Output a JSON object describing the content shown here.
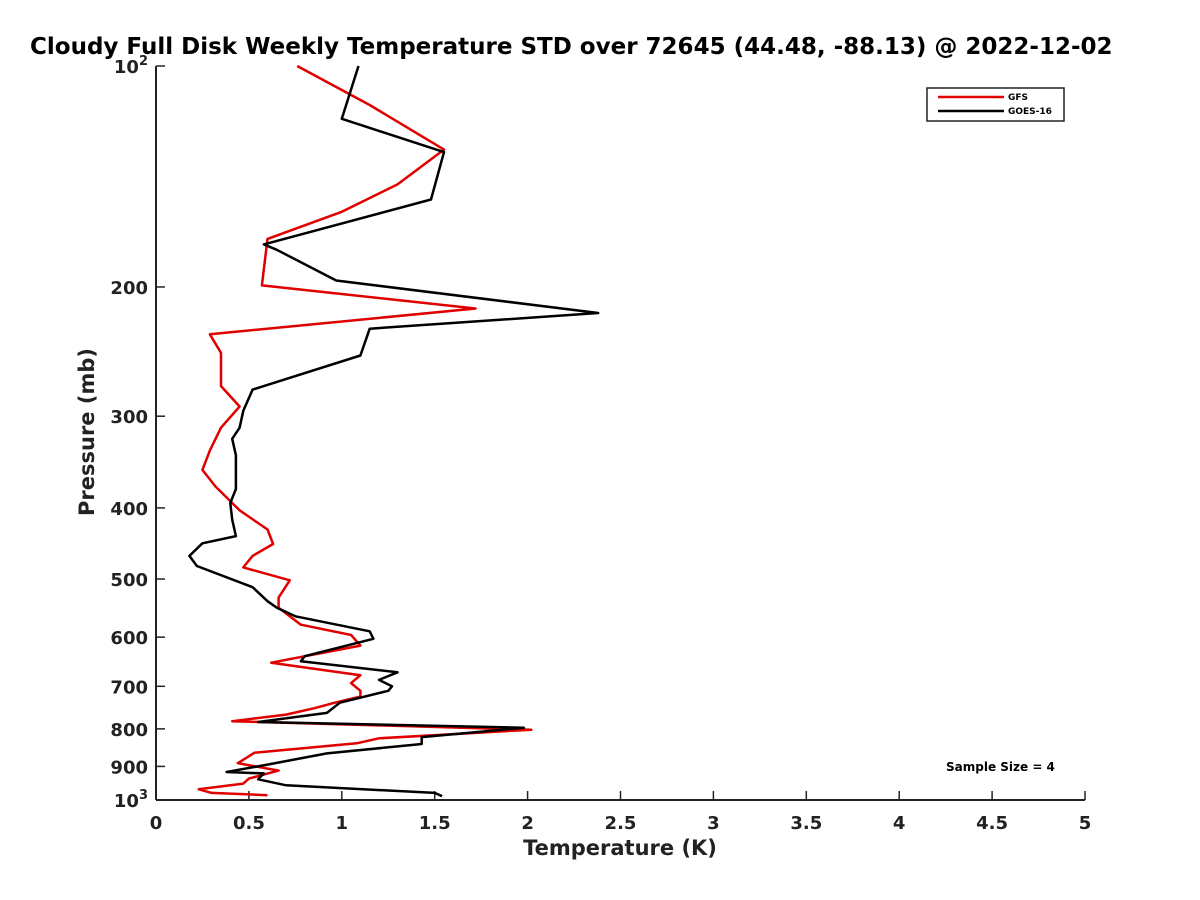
{
  "chart_data": {
    "type": "line",
    "title": "Cloudy Full Disk Weekly Temperature STD over 72645 (44.48, -88.13) @ 2022-12-02",
    "xlabel": "Temperature (K)",
    "ylabel": "Pressure (mb)",
    "xlim": [
      0,
      5
    ],
    "ylim": [
      1000,
      100
    ],
    "yscale": "log",
    "y_reversed": true,
    "grid": false,
    "legend_position": "top-right",
    "x_ticks": [
      0,
      0.5,
      1,
      1.5,
      2,
      2.5,
      3,
      3.5,
      4,
      4.5,
      5
    ],
    "x_tick_labels": [
      "0",
      "0.5",
      "1",
      "1.5",
      "2",
      "2.5",
      "3",
      "3.5",
      "4",
      "4.5",
      "5"
    ],
    "y_ticks": [
      100,
      200,
      300,
      400,
      500,
      600,
      700,
      800,
      900,
      1000
    ],
    "y_tick_labels": [
      {
        "base": "10",
        "exp": "2"
      },
      {
        "base": "200",
        "exp": ""
      },
      {
        "base": "300",
        "exp": ""
      },
      {
        "base": "400",
        "exp": ""
      },
      {
        "base": "500",
        "exp": ""
      },
      {
        "base": "600",
        "exp": ""
      },
      {
        "base": "700",
        "exp": ""
      },
      {
        "base": "800",
        "exp": ""
      },
      {
        "base": "900",
        "exp": ""
      },
      {
        "base": "10",
        "exp": "3"
      }
    ],
    "series": [
      {
        "name": "GFS",
        "color": "#e00000",
        "points": [
          [
            0.76,
            100
          ],
          [
            1.15,
            113
          ],
          [
            1.55,
            130
          ],
          [
            1.3,
            145
          ],
          [
            1.0,
            158
          ],
          [
            0.6,
            172
          ],
          [
            0.57,
            199
          ],
          [
            1.72,
            214
          ],
          [
            0.29,
            232
          ],
          [
            0.35,
            246
          ],
          [
            0.35,
            263
          ],
          [
            0.35,
            273
          ],
          [
            0.45,
            291
          ],
          [
            0.35,
            311
          ],
          [
            0.29,
            334
          ],
          [
            0.25,
            355
          ],
          [
            0.32,
            374
          ],
          [
            0.45,
            403
          ],
          [
            0.6,
            428
          ],
          [
            0.63,
            448
          ],
          [
            0.52,
            465
          ],
          [
            0.47,
            482
          ],
          [
            0.72,
            502
          ],
          [
            0.66,
            530
          ],
          [
            0.66,
            547
          ],
          [
            0.78,
            577
          ],
          [
            1.05,
            596
          ],
          [
            1.1,
            616
          ],
          [
            0.62,
            650
          ],
          [
            1.1,
            676
          ],
          [
            1.05,
            693
          ],
          [
            1.1,
            710
          ],
          [
            1.1,
            723
          ],
          [
            0.97,
            736
          ],
          [
            0.85,
            750
          ],
          [
            0.7,
            765
          ],
          [
            0.41,
            781
          ],
          [
            2.02,
            802
          ],
          [
            1.2,
            824
          ],
          [
            1.08,
            837
          ],
          [
            0.53,
            862
          ],
          [
            0.44,
            891
          ],
          [
            0.66,
            912
          ],
          [
            0.5,
            935
          ],
          [
            0.47,
            950
          ],
          [
            0.23,
            967
          ],
          [
            0.3,
            978
          ],
          [
            0.6,
            985
          ]
        ]
      },
      {
        "name": "GOES-16",
        "color": "#000000",
        "points": [
          [
            1.09,
            100
          ],
          [
            1.0,
            118
          ],
          [
            1.55,
            131
          ],
          [
            1.48,
            152
          ],
          [
            0.58,
            175
          ],
          [
            0.65,
            178
          ],
          [
            0.97,
            196
          ],
          [
            2.38,
            217
          ],
          [
            1.15,
            228
          ],
          [
            1.1,
            248
          ],
          [
            0.52,
            276
          ],
          [
            0.47,
            295
          ],
          [
            0.45,
            311
          ],
          [
            0.41,
            322
          ],
          [
            0.43,
            339
          ],
          [
            0.43,
            377
          ],
          [
            0.4,
            394
          ],
          [
            0.41,
            415
          ],
          [
            0.43,
            437
          ],
          [
            0.25,
            447
          ],
          [
            0.18,
            465
          ],
          [
            0.22,
            480
          ],
          [
            0.52,
            513
          ],
          [
            0.6,
            536
          ],
          [
            0.65,
            547
          ],
          [
            0.75,
            562
          ],
          [
            1.15,
            589
          ],
          [
            1.17,
            603
          ],
          [
            0.8,
            637
          ],
          [
            0.78,
            647
          ],
          [
            1.3,
            670
          ],
          [
            1.2,
            686
          ],
          [
            1.27,
            700
          ],
          [
            1.25,
            710
          ],
          [
            0.99,
            737
          ],
          [
            0.92,
            761
          ],
          [
            0.55,
            783
          ],
          [
            1.98,
            797
          ],
          [
            1.43,
            821
          ],
          [
            1.43,
            839
          ],
          [
            0.92,
            864
          ],
          [
            0.6,
            895
          ],
          [
            0.38,
            916
          ],
          [
            0.58,
            920
          ],
          [
            0.55,
            937
          ],
          [
            0.7,
            955
          ],
          [
            1.5,
            978
          ],
          [
            1.54,
            988
          ]
        ]
      }
    ],
    "annotations": [
      "Sample Size = 4"
    ]
  }
}
